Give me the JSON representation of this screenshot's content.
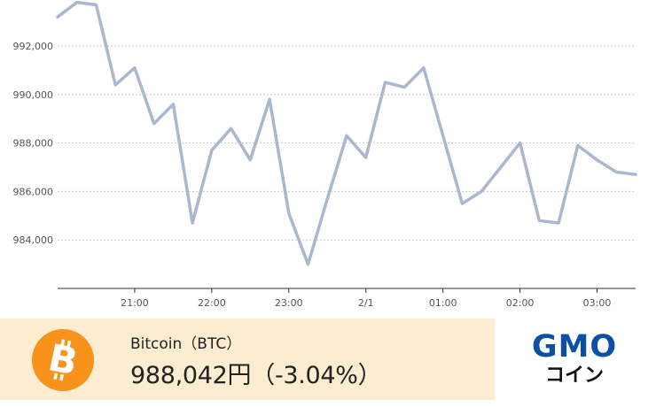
{
  "chart_data": {
    "type": "line",
    "x_tick_labels": [
      "21:00",
      "22:00",
      "23:00",
      "2/1",
      "01:00",
      "02:00",
      "03:00"
    ],
    "y_ticks": [
      984000,
      986000,
      988000,
      990000,
      992000
    ],
    "y_tick_labels": [
      "984,000",
      "986,000",
      "988,000",
      "990,000",
      "992,000"
    ],
    "ylim": [
      982000,
      993900
    ],
    "x_unit": "hours from 20:00",
    "xlim": [
      0,
      7.5
    ],
    "grid": "horizontal dotted",
    "series": [
      {
        "color": "#a9b7d0",
        "x": [
          0,
          0.25,
          0.5,
          0.75,
          1,
          1.25,
          1.5,
          1.75,
          2,
          2.25,
          2.5,
          2.75,
          3,
          3.25,
          3.5,
          3.75,
          4,
          4.25,
          4.5,
          4.75,
          5,
          5.25,
          5.5,
          5.75,
          6,
          6.25,
          6.5,
          6.75,
          7,
          7.25,
          7.5
        ],
        "values": [
          993200,
          993800,
          993700,
          990400,
          991100,
          988800,
          989600,
          984700,
          987700,
          988600,
          987300,
          989800,
          985100,
          983000,
          985700,
          988300,
          987400,
          990500,
          990300,
          991100,
          988300,
          985500,
          986000,
          987000,
          988000,
          984800,
          984700,
          987900,
          987300,
          986800,
          986700
        ]
      }
    ]
  },
  "footer": {
    "coin_name": "Bitcoin（BTC）",
    "price": "988,042円（-3.04%）",
    "coin_icon": "bitcoin-icon",
    "coin_color": "#f7931a",
    "logo_gmo": "GMO",
    "logo_coin": "コイン",
    "brand_color": "#0b50a6"
  }
}
